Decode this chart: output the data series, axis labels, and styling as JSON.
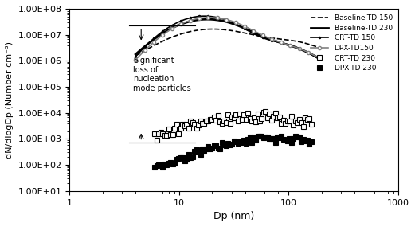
{
  "title": "",
  "xlabel": "Dp (nm)",
  "ylabel": "dN/dlogDp (Number cm⁻³)",
  "xlim": [
    1,
    1000
  ],
  "ylim": [
    10.0,
    100000000.0
  ],
  "annotation_text": "Significant\nloss of\nnucleation\nmode particles",
  "legend_entries": [
    "Baseline-TD 150",
    "Baseline-TD 230",
    "CRT-TD 150",
    "CRT-TD 230",
    "DPX-TD150",
    "DPX-TD 230"
  ]
}
